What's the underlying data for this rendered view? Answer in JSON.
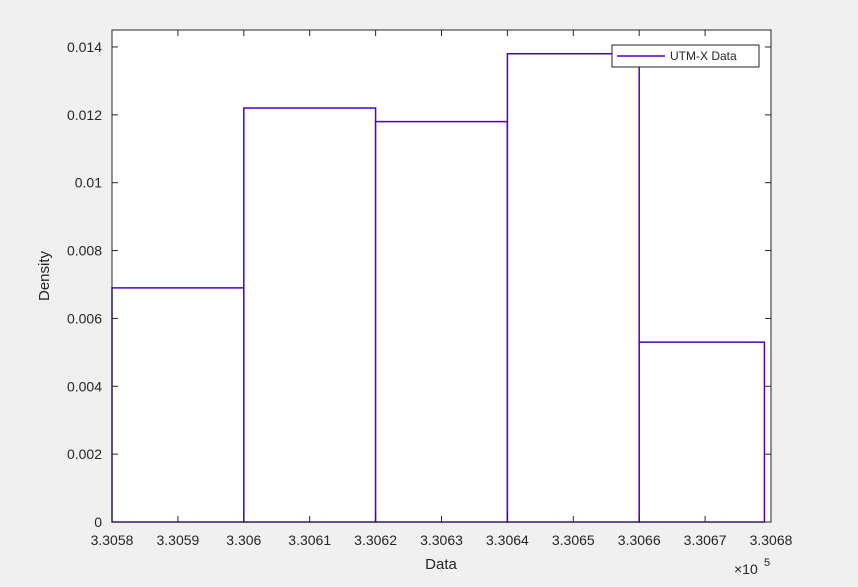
{
  "chart_data": {
    "type": "histogram",
    "bins": [
      {
        "x_start": 330580,
        "x_end": 330600,
        "density": 0.0069
      },
      {
        "x_start": 330600,
        "x_end": 330620,
        "density": 0.0122
      },
      {
        "x_start": 330620,
        "x_end": 330640,
        "density": 0.0118
      },
      {
        "x_start": 330640,
        "x_end": 330660,
        "density": 0.0138
      },
      {
        "x_start": 330660,
        "x_end": 330679,
        "density": 0.0053
      }
    ],
    "series": [
      {
        "name": "UTM-X Data",
        "color": "#5000c8"
      }
    ],
    "xlabel": "Data",
    "ylabel": "Density",
    "x_exponent_label": "×10",
    "x_exponent_power": "5",
    "xlim": [
      330580,
      330680
    ],
    "ylim": [
      0,
      0.0145
    ],
    "x_ticks": [
      "3.3058",
      "3.3059",
      "3.306",
      "3.3061",
      "3.3062",
      "3.3063",
      "3.3064",
      "3.3065",
      "3.3066",
      "3.3067",
      "3.3068"
    ],
    "y_ticks": [
      "0",
      "0.002",
      "0.004",
      "0.006",
      "0.008",
      "0.01",
      "0.012",
      "0.014"
    ],
    "legend_position": "top-right",
    "grid": false
  }
}
